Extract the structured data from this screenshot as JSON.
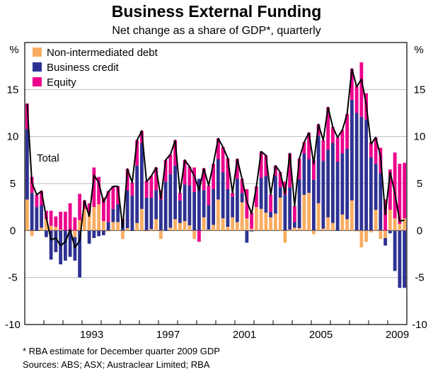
{
  "chart_data": {
    "type": "bar",
    "stacked": true,
    "title": "Business External Funding",
    "subtitle": "Net change as a share of GDP*, quarterly",
    "ylabel_left": "%",
    "ylabel_right": "%",
    "ylim": [
      -10,
      20
    ],
    "yticks": [
      -10,
      -5,
      0,
      5,
      10,
      15
    ],
    "ytick_labels": [
      "-10",
      "-5",
      "0",
      "5",
      "10",
      "15"
    ],
    "x_start": "1990 Q1",
    "x_end": "2009 Q4",
    "xtick_labels": [
      {
        "year": 1993,
        "label": "1993"
      },
      {
        "year": 1997,
        "label": "1997"
      },
      {
        "year": 2001,
        "label": "2001"
      },
      {
        "year": 2005,
        "label": "2005"
      },
      {
        "year": 2009,
        "label": "2009"
      }
    ],
    "grid": true,
    "legend_placement": "top-left",
    "series": [
      {
        "name": "Non-intermediated debt",
        "color": "#F9AD62",
        "index": 0
      },
      {
        "name": "Business credit",
        "color": "#2E3192",
        "index": 1
      },
      {
        "name": "Equity",
        "color": "#EC008C",
        "index": 2
      }
    ],
    "line_series": {
      "name": "Total",
      "color": "#000000",
      "note": "sum of components"
    },
    "annotation": "Total",
    "values_debt_credit_equity": [
      [
        3.3,
        7.5,
        2.7
      ],
      [
        -0.6,
        4.0,
        1.7
      ],
      [
        0,
        2.5,
        1.3
      ],
      [
        0.3,
        2.4,
        1.5
      ],
      [
        1.2,
        -0.7,
        0.9
      ],
      [
        0.5,
        -3.1,
        1.6
      ],
      [
        0.4,
        -2.3,
        1.1
      ],
      [
        0.1,
        -3.6,
        1.9
      ],
      [
        0,
        -3.2,
        2.0
      ],
      [
        0,
        -2.8,
        2.9
      ],
      [
        -0.7,
        -2.5,
        1.4
      ],
      [
        1.1,
        -5.0,
        2.8
      ],
      [
        2.3,
        0,
        0.9
      ],
      [
        1.9,
        -1.4,
        1.0
      ],
      [
        2.5,
        -0.8,
        4.2
      ],
      [
        2.8,
        -0.6,
        2.9
      ],
      [
        1.0,
        -0.5,
        2.5
      ],
      [
        -0.1,
        0.9,
        3.3
      ],
      [
        0.9,
        1.4,
        2.4
      ],
      [
        0.9,
        1.9,
        1.9
      ],
      [
        -0.9,
        0.9,
        0.3
      ],
      [
        0.25,
        4.0,
        2.3
      ],
      [
        0,
        3.7,
        1.4
      ],
      [
        0.8,
        6.1,
        2.7
      ],
      [
        2.3,
        7.0,
        1.3
      ],
      [
        -0.1,
        3.5,
        1.8
      ],
      [
        0.15,
        3.35,
        2.3
      ],
      [
        1.2,
        3.1,
        2.4
      ],
      [
        -0.9,
        3.3,
        1.0
      ],
      [
        0,
        5.2,
        2.3
      ],
      [
        0.3,
        5.7,
        2.1
      ],
      [
        1.2,
        5.7,
        2.7
      ],
      [
        0.8,
        2.4,
        0.8
      ],
      [
        1.0,
        3.9,
        2.6
      ],
      [
        0.55,
        4.25,
        2.0
      ],
      [
        -0.9,
        4.1,
        2.6
      ],
      [
        0,
        5.5,
        -1.2
      ],
      [
        1.4,
        2.9,
        2.3
      ],
      [
        0.1,
        2.6,
        2.1
      ],
      [
        0.6,
        3.8,
        2.7
      ],
      [
        3.3,
        4.3,
        2.2
      ],
      [
        1.3,
        4.9,
        2.7
      ],
      [
        0.4,
        4.0,
        3.3
      ],
      [
        1.4,
        2.2,
        0.4
      ],
      [
        0.9,
        4.6,
        2.1
      ],
      [
        3.0,
        1.0,
        1.5
      ],
      [
        1.3,
        -1.3,
        3.1
      ],
      [
        0.2,
        -0.1,
        1.7
      ],
      [
        2.5,
        0,
        2.2
      ],
      [
        2.3,
        3.3,
        2.8
      ],
      [
        1.9,
        3.9,
        2.2
      ],
      [
        1.4,
        0.6,
        1.8
      ],
      [
        1.8,
        4.0,
        1.1
      ],
      [
        3.5,
        1.1,
        1.6
      ],
      [
        -1.3,
        3.8,
        1.4
      ],
      [
        0.1,
        4.5,
        3.6
      ],
      [
        0.3,
        0.6,
        1.7
      ],
      [
        0.25,
        5.2,
        2.2
      ],
      [
        3.8,
        4.4,
        1.2
      ],
      [
        4.0,
        3.6,
        2.8
      ],
      [
        -0.4,
        5.4,
        2.1
      ],
      [
        2.9,
        7.2,
        1.2
      ],
      [
        0.2,
        7.2,
        2.2
      ],
      [
        1.4,
        7.2,
        4.5
      ],
      [
        0.8,
        8.5,
        1.7
      ],
      [
        0,
        7.3,
        2.6
      ],
      [
        1.7,
        6.5,
        2.5
      ],
      [
        1.2,
        7.5,
        3.7
      ],
      [
        3.2,
        10.7,
        3.3
      ],
      [
        -0.1,
        12.5,
        2.9
      ],
      [
        -1.8,
        12.1,
        5.8
      ],
      [
        -1.2,
        11.8,
        2.8
      ],
      [
        -0.2,
        7.8,
        1.6
      ],
      [
        2.2,
        4.9,
        2.8
      ],
      [
        -0.9,
        6.1,
        2.7
      ],
      [
        -0.8,
        -0.8,
        3.3
      ],
      [
        2.2,
        -0.3,
        4.3
      ],
      [
        1.3,
        -4.3,
        7.0
      ],
      [
        0.7,
        -6.1,
        6.4
      ],
      [
        1.3,
        -6.1,
        5.9
      ]
    ],
    "footnotes": [
      "*    RBA estimate for December quarter 2009 GDP",
      "Sources: ABS; ASX; Austraclear Limited; RBA"
    ]
  }
}
